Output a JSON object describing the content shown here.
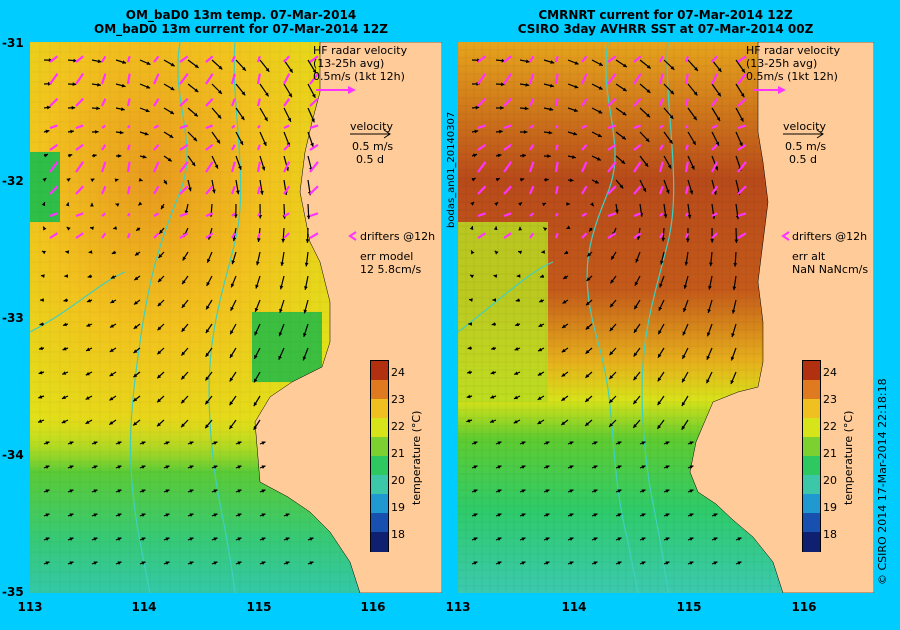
{
  "colors": {
    "frame": "#00ccff",
    "land": "#ffcc99",
    "bathy": "#3fd0c0",
    "drifter": "#ff33ff",
    "arrow": "#000000"
  },
  "left_panel": {
    "title_line1": "OM_baD0 13m temp. 07-Mar-2014",
    "title_line2": "OM_baD0 13m current for 07-Mar-2014 12Z",
    "legend": {
      "hf_title": "HF radar velocity",
      "hf_avg": "(13-25h avg)",
      "hf_scale": "0.5m/s (1kt 12h)",
      "velocity_title": "velocity",
      "velocity_ms": "0.5 m/s",
      "velocity_d": "0.5 d",
      "drifters": "drifters @12h",
      "err_label": "err model",
      "err_value": "12 5.8cm/s"
    },
    "colorbar_ticks": [
      "24",
      "23",
      "22",
      "21",
      "20",
      "19",
      "18"
    ],
    "colorbar_label": "temperature (°C)"
  },
  "right_panel": {
    "title_line1": "CMRNRT current for 07-Mar-2014 12Z",
    "title_line2": "CSIRO 3day AVHRR SST at 07-Mar-2014 00Z",
    "side_label": "bodas_an01_20140307",
    "legend": {
      "hf_title": "HF radar velocity",
      "hf_avg": "(13-25h avg)",
      "hf_scale": "0.5m/s (1kt 12h)",
      "velocity_title": "velocity",
      "velocity_ms": "0.5 m/s",
      "velocity_d": "0.5 d",
      "drifters": "drifters @12h",
      "err_label": "err alt",
      "err_value": "NaN NaNcm/s"
    },
    "colorbar_ticks": [
      "24",
      "23",
      "22",
      "21",
      "20",
      "19",
      "18"
    ],
    "colorbar_label": "temperature (°C)"
  },
  "axes": {
    "y_ticks": [
      "-31",
      "-32",
      "-33",
      "-34",
      "-35"
    ],
    "x_ticks": [
      "113",
      "114",
      "115",
      "116"
    ]
  },
  "credit": "© CSIRO 2014   17-Mar-2014 22:18:18"
}
